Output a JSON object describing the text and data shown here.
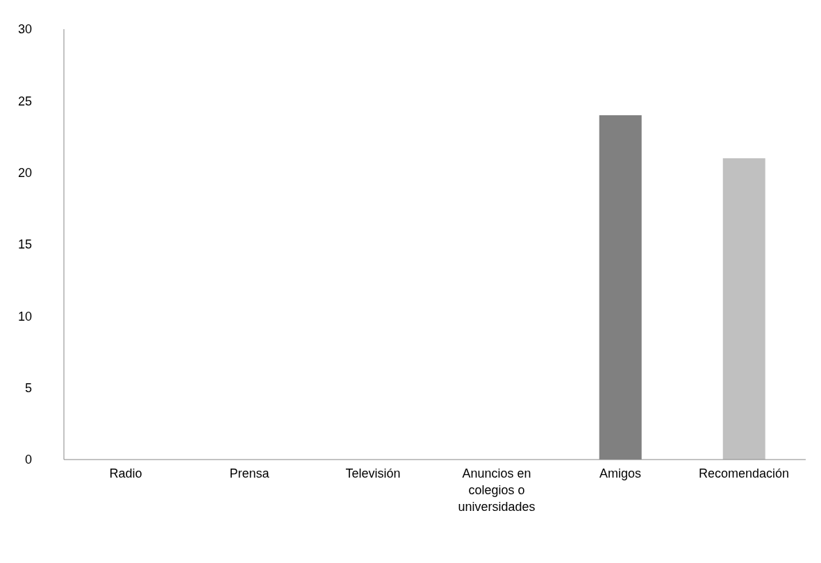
{
  "chart_data": {
    "type": "bar",
    "categories": [
      "Radio",
      "Prensa",
      "Televisión",
      "Anuncios en colegios o universidades",
      "Amigos",
      "Recomendación"
    ],
    "values": [
      0,
      0,
      0,
      0,
      24,
      21
    ],
    "colors": [
      "#808080",
      "#808080",
      "#808080",
      "#808080",
      "#808080",
      "#c0c0c0"
    ],
    "ylim": [
      0,
      30
    ],
    "yticks": [
      0,
      5,
      10,
      15,
      20,
      25,
      30
    ]
  }
}
